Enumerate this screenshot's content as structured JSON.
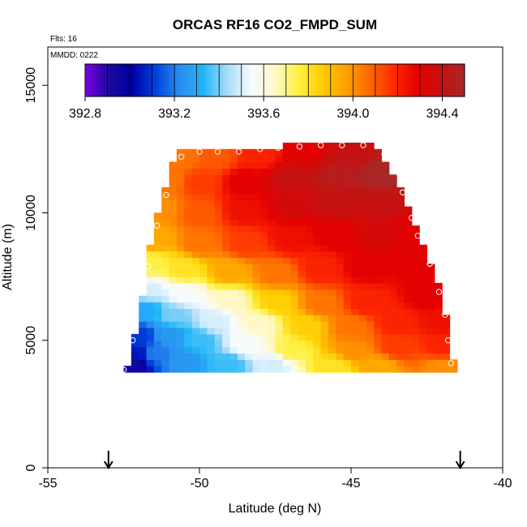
{
  "chart_data": {
    "type": "heatmap",
    "title": "ORCAS RF16 CO2_FMPD_SUM",
    "flights_label": "Flts: 16",
    "date_label": "MMDD: 0222",
    "xlabel": "Latitude (deg N)",
    "ylabel": "Altitude (m)",
    "xlim": [
      -55,
      -40
    ],
    "ylim": [
      0,
      16500
    ],
    "x_ticks": [
      -55,
      -50,
      -45,
      -40
    ],
    "y_ticks": [
      0,
      5000,
      10000,
      15000
    ],
    "color_scale": {
      "min": 392.8,
      "max": 394.5,
      "tick_values": [
        392.8,
        393.2,
        393.6,
        394.0,
        394.4
      ],
      "tick_labels": [
        "392.8",
        "393.2",
        "393.6",
        "394.0",
        "394.4"
      ],
      "colors": [
        "#7d00e6",
        "#1a0a99",
        "#0000aa",
        "#0044dd",
        "#2a8ef0",
        "#22b6f8",
        "#a8dcf8",
        "#f6fbff",
        "#fff8c8",
        "#fff040",
        "#ffcc00",
        "#ffa000",
        "#ff6800",
        "#ff2a00",
        "#e60000",
        "#c81010",
        "#a82828"
      ]
    },
    "domain": {
      "left_edge": [
        [
          3800,
          -52.4
        ],
        [
          4350,
          -52.3
        ],
        [
          5950,
          -52.0
        ],
        [
          7400,
          -51.8
        ],
        [
          8200,
          -51.7
        ],
        [
          9500,
          -51.5
        ],
        [
          10700,
          -51.2
        ],
        [
          11700,
          -51.0
        ],
        [
          12300,
          -50.8
        ]
      ],
      "right_edge": [
        [
          3900,
          -41.6
        ],
        [
          5000,
          -41.7
        ],
        [
          6000,
          -41.9
        ],
        [
          6950,
          -42.0
        ],
        [
          8000,
          -42.4
        ],
        [
          9100,
          -42.7
        ],
        [
          9800,
          -43.0
        ],
        [
          10800,
          -43.3
        ],
        [
          11700,
          -43.7
        ],
        [
          12400,
          -44.0
        ],
        [
          12700,
          -44.5
        ]
      ],
      "top_edge": [
        [
          -50.8,
          12400
        ],
        [
          -49.0,
          12400
        ],
        [
          -48.0,
          12600
        ],
        [
          -44.5,
          12700
        ]
      ]
    },
    "field_anchors": [
      [
        -52.2,
        4100,
        392.95
      ],
      [
        -52.0,
        4500,
        393.05
      ],
      [
        -51.5,
        4500,
        393.2
      ],
      [
        -50.5,
        4200,
        393.25
      ],
      [
        -49.0,
        4100,
        393.35
      ],
      [
        -47.5,
        4050,
        393.5
      ],
      [
        -45.5,
        4000,
        393.8
      ],
      [
        -44.0,
        4000,
        393.95
      ],
      [
        -42.0,
        4000,
        394.0
      ],
      [
        -52.0,
        5200,
        393.1
      ],
      [
        -51.0,
        5200,
        393.25
      ],
      [
        -50.0,
        5000,
        393.35
      ],
      [
        -48.5,
        4800,
        393.55
      ],
      [
        -47.0,
        4600,
        393.75
      ],
      [
        -45.0,
        4600,
        394.0
      ],
      [
        -43.5,
        4700,
        394.15
      ],
      [
        -42.0,
        4700,
        394.2
      ],
      [
        -51.8,
        6200,
        393.3
      ],
      [
        -50.8,
        6000,
        393.4
      ],
      [
        -49.5,
        5800,
        393.5
      ],
      [
        -48.0,
        5700,
        393.65
      ],
      [
        -46.5,
        5600,
        393.85
      ],
      [
        -45.0,
        5500,
        394.05
      ],
      [
        -43.5,
        5700,
        394.2
      ],
      [
        -42.0,
        5800,
        394.25
      ],
      [
        -51.7,
        7000,
        393.5
      ],
      [
        -50.5,
        6800,
        393.55
      ],
      [
        -49.0,
        6600,
        393.65
      ],
      [
        -47.5,
        6500,
        393.85
      ],
      [
        -46.0,
        6400,
        394.05
      ],
      [
        -44.5,
        6500,
        394.2
      ],
      [
        -42.5,
        6800,
        394.3
      ],
      [
        -51.6,
        8000,
        393.75
      ],
      [
        -50.5,
        7800,
        393.8
      ],
      [
        -49.0,
        7700,
        393.95
      ],
      [
        -47.5,
        7600,
        394.05
      ],
      [
        -46.0,
        7800,
        394.2
      ],
      [
        -44.5,
        7900,
        394.3
      ],
      [
        -42.7,
        8000,
        394.3
      ],
      [
        -51.5,
        9000,
        393.95
      ],
      [
        -50.0,
        8800,
        394.05
      ],
      [
        -48.5,
        8800,
        394.15
      ],
      [
        -47.0,
        9000,
        394.25
      ],
      [
        -45.5,
        9200,
        394.3
      ],
      [
        -44.0,
        9200,
        394.35
      ],
      [
        -43.0,
        9200,
        394.3
      ],
      [
        -51.3,
        10200,
        394.0
      ],
      [
        -50.0,
        10000,
        394.1
      ],
      [
        -48.5,
        10100,
        394.25
      ],
      [
        -47.0,
        10300,
        394.35
      ],
      [
        -45.5,
        10400,
        394.4
      ],
      [
        -44.0,
        10400,
        394.4
      ],
      [
        -51.0,
        11300,
        394.05
      ],
      [
        -50.0,
        11200,
        394.15
      ],
      [
        -48.5,
        11200,
        394.3
      ],
      [
        -47.0,
        11400,
        394.4
      ],
      [
        -45.5,
        11500,
        394.45
      ],
      [
        -44.0,
        11500,
        394.5
      ],
      [
        -50.6,
        12200,
        394.05
      ],
      [
        -49.5,
        12200,
        394.1
      ],
      [
        -48.0,
        12300,
        394.2
      ],
      [
        -46.5,
        12400,
        394.3
      ],
      [
        -45.0,
        12500,
        394.4
      ]
    ],
    "flight_track_points": [
      [
        -52.5,
        3850
      ],
      [
        -52.4,
        4300
      ],
      [
        -52.2,
        5000
      ],
      [
        -52.1,
        5950
      ],
      [
        -51.9,
        6950
      ],
      [
        -51.7,
        7900
      ],
      [
        -51.4,
        9500
      ],
      [
        -51.1,
        10700
      ],
      [
        -50.6,
        12200
      ],
      [
        -50.0,
        12400
      ],
      [
        -49.4,
        12400
      ],
      [
        -48.7,
        12400
      ],
      [
        -48.0,
        12500
      ],
      [
        -47.4,
        12550
      ],
      [
        -46.7,
        12600
      ],
      [
        -46.0,
        12650
      ],
      [
        -45.3,
        12650
      ],
      [
        -44.6,
        12650
      ],
      [
        -43.9,
        12300
      ],
      [
        -43.4,
        11500
      ],
      [
        -43.3,
        10800
      ],
      [
        -43.0,
        9800
      ],
      [
        -42.8,
        9100
      ],
      [
        -42.4,
        8000
      ],
      [
        -42.1,
        6900
      ],
      [
        -41.9,
        6000
      ],
      [
        -41.8,
        5000
      ],
      [
        -41.7,
        4100
      ]
    ],
    "arrows_at_latitude": [
      -53.0,
      -41.4
    ]
  }
}
